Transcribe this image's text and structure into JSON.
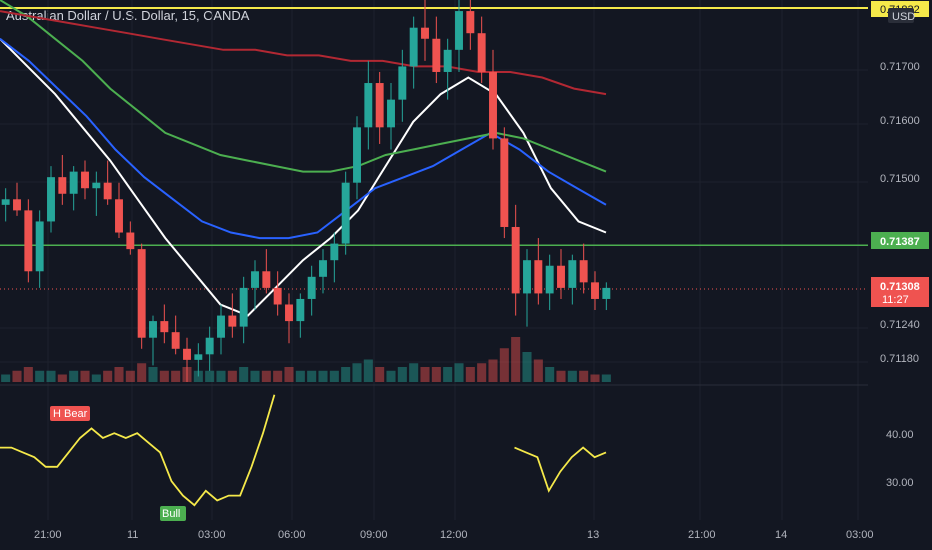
{
  "header": {
    "title": "Australian Dollar / U.S. Dollar, 15, OANDA"
  },
  "colors": {
    "bg": "#131722",
    "up": "#26a69a",
    "down": "#ef5350",
    "grid": "#1e222d",
    "sma_white": "#ffffff",
    "sma_blue": "#2962ff",
    "sma_green": "#4caf50",
    "sma_red": "#b22833",
    "yellow": "#f5e94a",
    "green_line": "#4caf50"
  },
  "price_axis": {
    "currency": "USD",
    "ticks": [
      "0.71700",
      "0.71600",
      "0.71500",
      "0.71240",
      "0.71180"
    ],
    "top_level": "0.71832",
    "support_level": "0.71387",
    "current_price": "0.71308",
    "countdown": "11:27"
  },
  "time_axis": {
    "labels": [
      "21:00",
      "11",
      "03:00",
      "06:00",
      "09:00",
      "12:00",
      "13",
      "21:00",
      "14",
      "03:00"
    ]
  },
  "oscillator": {
    "ticks": [
      "40.00",
      "30.00"
    ],
    "labels": {
      "bear": "H Bear",
      "bull": "Bull"
    }
  },
  "chart_data": {
    "type": "candlestick",
    "symbol": "AUDUSD",
    "interval": "15",
    "ylim": [
      0.7114,
      0.7183
    ],
    "price_levels": {
      "resistance": 0.71832,
      "support": 0.71387,
      "last": 0.71308
    },
    "candles": [
      [
        0.7146,
        0.7149,
        0.7143,
        0.7147
      ],
      [
        0.7147,
        0.715,
        0.7144,
        0.7145
      ],
      [
        0.7145,
        0.7147,
        0.7132,
        0.7134
      ],
      [
        0.7134,
        0.7145,
        0.7131,
        0.7143
      ],
      [
        0.7143,
        0.7153,
        0.7141,
        0.7151
      ],
      [
        0.7151,
        0.7155,
        0.7146,
        0.7148
      ],
      [
        0.7148,
        0.7153,
        0.7145,
        0.7152
      ],
      [
        0.7152,
        0.7154,
        0.7147,
        0.7149
      ],
      [
        0.7149,
        0.7152,
        0.7144,
        0.715
      ],
      [
        0.715,
        0.7154,
        0.7146,
        0.7147
      ],
      [
        0.7147,
        0.715,
        0.714,
        0.7141
      ],
      [
        0.7141,
        0.7143,
        0.7137,
        0.7138
      ],
      [
        0.7138,
        0.7139,
        0.712,
        0.7122
      ],
      [
        0.7122,
        0.7126,
        0.7117,
        0.7125
      ],
      [
        0.7125,
        0.7128,
        0.7121,
        0.7123
      ],
      [
        0.7123,
        0.7126,
        0.7119,
        0.712
      ],
      [
        0.712,
        0.7122,
        0.7114,
        0.7118
      ],
      [
        0.7118,
        0.7121,
        0.7115,
        0.7119
      ],
      [
        0.7119,
        0.7124,
        0.7116,
        0.7122
      ],
      [
        0.7122,
        0.7128,
        0.7119,
        0.7126
      ],
      [
        0.7126,
        0.713,
        0.7122,
        0.7124
      ],
      [
        0.7124,
        0.7133,
        0.7121,
        0.7131
      ],
      [
        0.7131,
        0.7136,
        0.7127,
        0.7134
      ],
      [
        0.7134,
        0.7138,
        0.713,
        0.7131
      ],
      [
        0.7131,
        0.7134,
        0.7126,
        0.7128
      ],
      [
        0.7128,
        0.713,
        0.7121,
        0.7125
      ],
      [
        0.7125,
        0.713,
        0.7122,
        0.7129
      ],
      [
        0.7129,
        0.7135,
        0.7126,
        0.7133
      ],
      [
        0.7133,
        0.7138,
        0.713,
        0.7136
      ],
      [
        0.7136,
        0.7141,
        0.7132,
        0.7139
      ],
      [
        0.7139,
        0.7152,
        0.7137,
        0.715
      ],
      [
        0.715,
        0.7162,
        0.7147,
        0.716
      ],
      [
        0.716,
        0.7172,
        0.7156,
        0.7168
      ],
      [
        0.7168,
        0.717,
        0.7157,
        0.716
      ],
      [
        0.716,
        0.7168,
        0.7156,
        0.7165
      ],
      [
        0.7165,
        0.7174,
        0.7161,
        0.7171
      ],
      [
        0.7171,
        0.718,
        0.7167,
        0.7178
      ],
      [
        0.7178,
        0.7183,
        0.7172,
        0.7176
      ],
      [
        0.7176,
        0.718,
        0.7168,
        0.717
      ],
      [
        0.717,
        0.7176,
        0.7165,
        0.7174
      ],
      [
        0.7174,
        0.7183,
        0.717,
        0.7181
      ],
      [
        0.7181,
        0.7183,
        0.7174,
        0.7177
      ],
      [
        0.7177,
        0.718,
        0.7168,
        0.717
      ],
      [
        0.717,
        0.7174,
        0.7156,
        0.7158
      ],
      [
        0.7158,
        0.716,
        0.714,
        0.7142
      ],
      [
        0.7142,
        0.7146,
        0.7126,
        0.713
      ],
      [
        0.713,
        0.7138,
        0.7124,
        0.7136
      ],
      [
        0.7136,
        0.714,
        0.7128,
        0.713
      ],
      [
        0.713,
        0.7137,
        0.7127,
        0.7135
      ],
      [
        0.7135,
        0.7138,
        0.7129,
        0.7131
      ],
      [
        0.7131,
        0.7137,
        0.7128,
        0.7136
      ],
      [
        0.7136,
        0.7139,
        0.713,
        0.7132
      ],
      [
        0.7132,
        0.7134,
        0.7127,
        0.7129
      ],
      [
        0.7129,
        0.7132,
        0.7127,
        0.7131
      ]
    ],
    "volume": [
      2,
      3,
      4,
      3,
      3,
      2,
      3,
      3,
      2,
      3,
      4,
      3,
      5,
      4,
      3,
      3,
      4,
      3,
      3,
      3,
      3,
      4,
      3,
      3,
      3,
      4,
      3,
      3,
      3,
      3,
      4,
      5,
      6,
      4,
      3,
      4,
      5,
      4,
      4,
      4,
      5,
      4,
      5,
      6,
      9,
      12,
      8,
      6,
      4,
      3,
      3,
      3,
      2,
      2
    ],
    "moving_averages": [
      {
        "color": "white",
        "values": [
          0.7176,
          0.7171,
          0.7166,
          0.716,
          0.7154,
          0.7147,
          0.714,
          0.7134,
          0.7128,
          0.7126,
          0.7131,
          0.7136,
          0.714,
          0.7145,
          0.7153,
          0.7161,
          0.7166,
          0.7169,
          0.7166,
          0.7159,
          0.7149,
          0.7143,
          0.7141
        ]
      },
      {
        "color": "blue",
        "values": [
          0.7176,
          0.7172,
          0.7167,
          0.7162,
          0.7156,
          0.7151,
          0.7147,
          0.7143,
          0.7141,
          0.714,
          0.714,
          0.7141,
          0.7145,
          0.7149,
          0.7151,
          0.7153,
          0.7156,
          0.7159,
          0.7156,
          0.7152,
          0.7149,
          0.7146
        ]
      },
      {
        "color": "green",
        "values": [
          0.7183,
          0.718,
          0.7176,
          0.7172,
          0.7167,
          0.7163,
          0.7159,
          0.7157,
          0.7155,
          0.7154,
          0.7153,
          0.7152,
          0.7152,
          0.7153,
          0.7155,
          0.7156,
          0.7157,
          0.7158,
          0.7159,
          0.7158,
          0.7156,
          0.7154,
          0.7152
        ]
      },
      {
        "color": "red",
        "values": [
          0.7181,
          0.718,
          0.7179,
          0.7178,
          0.7177,
          0.7176,
          0.7175,
          0.7174,
          0.7174,
          0.7173,
          0.7173,
          0.7172,
          0.7172,
          0.7171,
          0.7171,
          0.717,
          0.717,
          0.7169,
          0.7167,
          0.7166
        ]
      }
    ],
    "oscillator": {
      "ylim": [
        25,
        50
      ],
      "values": [
        38,
        38,
        37,
        36,
        34,
        34,
        37,
        40,
        42,
        40,
        41,
        40,
        41,
        39,
        37,
        31,
        28,
        26,
        29,
        27,
        28,
        28,
        34,
        41,
        49,
        null,
        null,
        null,
        null,
        null,
        null,
        null,
        null,
        null,
        null,
        null,
        null,
        null,
        null,
        null,
        null,
        null,
        null,
        null,
        null,
        38,
        37,
        36,
        29,
        33,
        36,
        38,
        36,
        37
      ]
    }
  }
}
